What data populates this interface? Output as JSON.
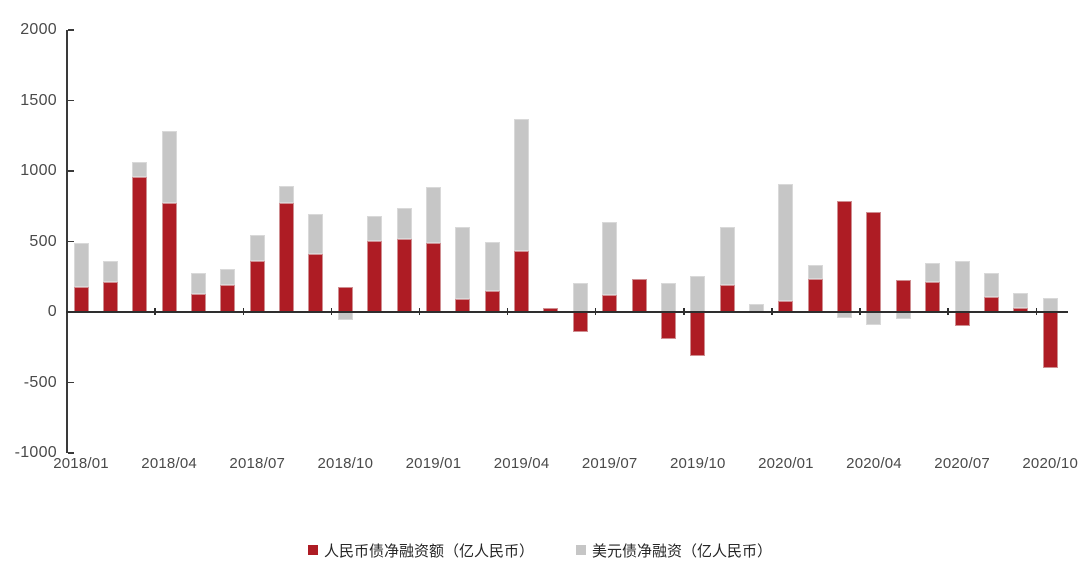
{
  "chart_data": {
    "type": "bar",
    "stacked": true,
    "title": "",
    "xlabel": "",
    "ylabel": "",
    "grid": false,
    "legend_position": "bottom",
    "ylim": [
      -1000,
      2000
    ],
    "yticks": [
      2000,
      1500,
      1000,
      500,
      0,
      -500,
      -1000
    ],
    "ytick_labels": [
      "2000",
      "1500",
      "1000",
      "500",
      "0",
      "-500",
      "-1000"
    ],
    "xtick_labels": [
      "2018/01",
      "2018/04",
      "2018/07",
      "2018/10",
      "2019/01",
      "2019/04",
      "2019/07",
      "2019/10",
      "2020/01",
      "2020/04",
      "2020/07",
      "2020/10"
    ],
    "categories": [
      "2018/01",
      "2018/02",
      "2018/03",
      "2018/04",
      "2018/05",
      "2018/06",
      "2018/07",
      "2018/08",
      "2018/09",
      "2018/10",
      "2018/11",
      "2018/12",
      "2019/01",
      "2019/02",
      "2019/03",
      "2019/04",
      "2019/05",
      "2019/06",
      "2019/07",
      "2019/08",
      "2019/09",
      "2019/10",
      "2019/11",
      "2019/12",
      "2020/01",
      "2020/02",
      "2020/03",
      "2020/04",
      "2020/05",
      "2020/06",
      "2020/07",
      "2020/08",
      "2020/09",
      "2020/10"
    ],
    "series": [
      {
        "name": "人民币债净融资额（亿人民币）",
        "color": "#AE1C24",
        "values": [
          180,
          215,
          955,
          775,
          125,
          190,
          365,
          770,
          410,
          175,
          505,
          515,
          490,
          95,
          150,
          430,
          30,
          -145,
          120,
          235,
          -195,
          -315,
          190,
          0,
          75,
          235,
          790,
          710,
          225,
          210,
          -100,
          105,
          25,
          -395
        ]
      },
      {
        "name": "美元债净融资（亿人民币）",
        "color": "#C6C6C6",
        "values": [
          310,
          145,
          110,
          510,
          155,
          115,
          180,
          125,
          285,
          -60,
          175,
          220,
          400,
          505,
          350,
          940,
          0,
          205,
          515,
          0,
          205,
          255,
          410,
          55,
          830,
          100,
          -45,
          -95,
          -50,
          140,
          360,
          175,
          110,
          100
        ]
      }
    ]
  },
  "legend": {
    "items": [
      {
        "label": "人民币债净融资额（亿人民币）",
        "color": "#AE1C24"
      },
      {
        "label": "美元债净融资（亿人民币）",
        "color": "#C6C6C6"
      }
    ]
  },
  "colors": {
    "cny_bar": "#AE1C24",
    "usd_bar": "#C6C6C6",
    "axis_line": "#2e2e2e",
    "tick_label": "#4a4a4a",
    "legend_text": "#262626"
  }
}
